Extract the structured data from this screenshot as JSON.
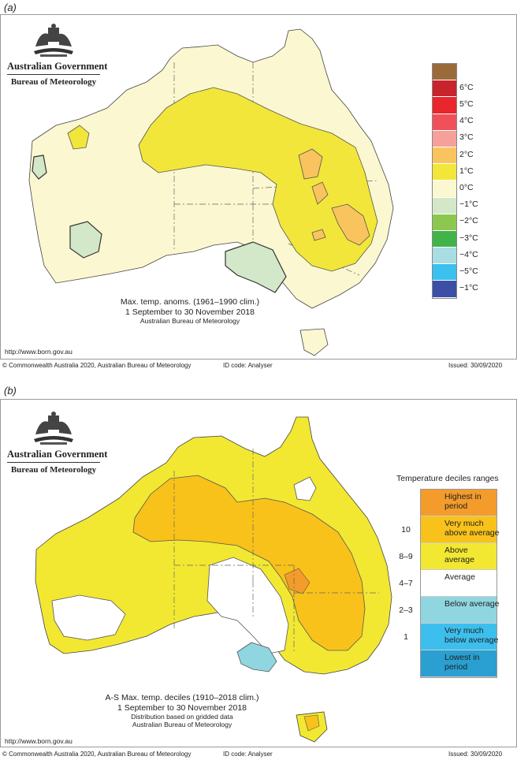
{
  "panel_a": {
    "label": "(a)",
    "logo": {
      "line1": "Australian Government",
      "line2": "Bureau of Meteorology"
    },
    "legend": [
      {
        "label": "",
        "color": "#9b6a3a"
      },
      {
        "label": "6°C",
        "color": "#c8242c"
      },
      {
        "label": "5°C",
        "color": "#e9262c"
      },
      {
        "label": "4°C",
        "color": "#f0505a"
      },
      {
        "label": "3°C",
        "color": "#f5a09b"
      },
      {
        "label": "2°C",
        "color": "#f9c45e"
      },
      {
        "label": "1°C",
        "color": "#f2e63a"
      },
      {
        "label": "0°C",
        "color": "#fbf7d0"
      },
      {
        "label": "−1°C",
        "color": "#d3e8c8"
      },
      {
        "label": "−2°C",
        "color": "#8cc850"
      },
      {
        "label": "−3°C",
        "color": "#42b348"
      },
      {
        "label": "−4°C",
        "color": "#a9dce3"
      },
      {
        "label": "−5°C",
        "color": "#3cc0ee"
      },
      {
        "label": "−1°C",
        "color": "#3a4fa5"
      }
    ],
    "caption": {
      "line1": "Max. temp. anoms. (1961–1990 clim.)",
      "line2": "1 September to 30 November 2018",
      "line3": "Australian Bureau of Meteorology"
    },
    "url": "http://www.born.gov.au",
    "footer": {
      "copyright": "© Commonwealth Australia 2020, Australian Bureau of Meteorology",
      "id_code": "ID code: Analyser",
      "issued": "Issued: 30/09/2020"
    }
  },
  "panel_b": {
    "label": "(b)",
    "logo": {
      "line1": "Australian Government",
      "line2": "Bureau of Meteorology"
    },
    "legend_title": "Temperature deciles ranges",
    "legend": [
      {
        "decile": "",
        "label": "Highest in period",
        "color": "#f39c2b"
      },
      {
        "decile": "10",
        "label": "Very much above average",
        "color": "#f8c21a"
      },
      {
        "decile": "8–9",
        "label": "Above average",
        "color": "#f2e832"
      },
      {
        "decile": "4–7",
        "label": "Average",
        "color": "#ffffff"
      },
      {
        "decile": "2–3",
        "label": "Below average",
        "color": "#8fd6e0"
      },
      {
        "decile": "1",
        "label": "Very much below average",
        "color": "#3dbfee"
      },
      {
        "decile": "",
        "label": "Lowest in period",
        "color": "#2a9fd1"
      }
    ],
    "caption": {
      "line1": "A-S Max. temp. deciles (1910–2018 clim.)",
      "line2": "1 September to 30 November 2018",
      "line3": "Distribution based on gridded data",
      "line4": "Australian Bureau of Meteorology"
    },
    "url": "http://www.born.gov.au",
    "footer": {
      "copyright": "© Commonwealth Australia 2020, Australian Bureau of Meteorology",
      "id_code": "ID code: Analyser",
      "issued": "Issued: 30/09/2020"
    }
  }
}
